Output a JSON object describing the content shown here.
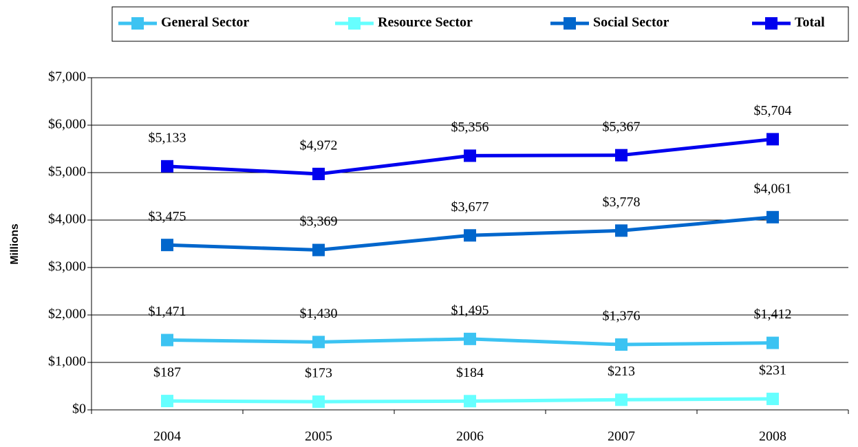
{
  "chart_data": {
    "type": "line",
    "y_label": "Millions",
    "categories": [
      "2004",
      "2005",
      "2006",
      "2007",
      "2008"
    ],
    "series": [
      {
        "name": "General Sector",
        "color": "#3cc3f2",
        "values": [
          1471,
          1430,
          1495,
          1376,
          1412
        ],
        "value_labels": [
          "$1,471",
          "$1,430",
          "$1,495",
          "$1,376",
          "$1,412"
        ]
      },
      {
        "name": "Resource Sector",
        "color": "#66ffff",
        "values": [
          187,
          173,
          184,
          213,
          231
        ],
        "value_labels": [
          "$187",
          "$173",
          "$184",
          "$213",
          "$231"
        ]
      },
      {
        "name": "Social Sector",
        "color": "#0066cc",
        "values": [
          3475,
          3369,
          3677,
          3778,
          4061
        ],
        "value_labels": [
          "$3,475",
          "$3,369",
          "$3,677",
          "$3,778",
          "$4,061"
        ]
      },
      {
        "name": "Total",
        "color": "#0000ee",
        "values": [
          5133,
          4972,
          5356,
          5367,
          5704
        ],
        "value_labels": [
          "$5,133",
          "$4,972",
          "$5,356",
          "$5,367",
          "$5,704"
        ]
      }
    ],
    "ylim": [
      0,
      7000
    ],
    "yticks": [
      {
        "value": 0,
        "label": "$0"
      },
      {
        "value": 1000,
        "label": "$1,000"
      },
      {
        "value": 2000,
        "label": "$2,000"
      },
      {
        "value": 3000,
        "label": "$3,000"
      },
      {
        "value": 4000,
        "label": "$4,000"
      },
      {
        "value": 5000,
        "label": "$5,000"
      },
      {
        "value": 6000,
        "label": "$6,000"
      },
      {
        "value": 7000,
        "label": "$7,000"
      }
    ],
    "grid": true,
    "legend": "top"
  }
}
